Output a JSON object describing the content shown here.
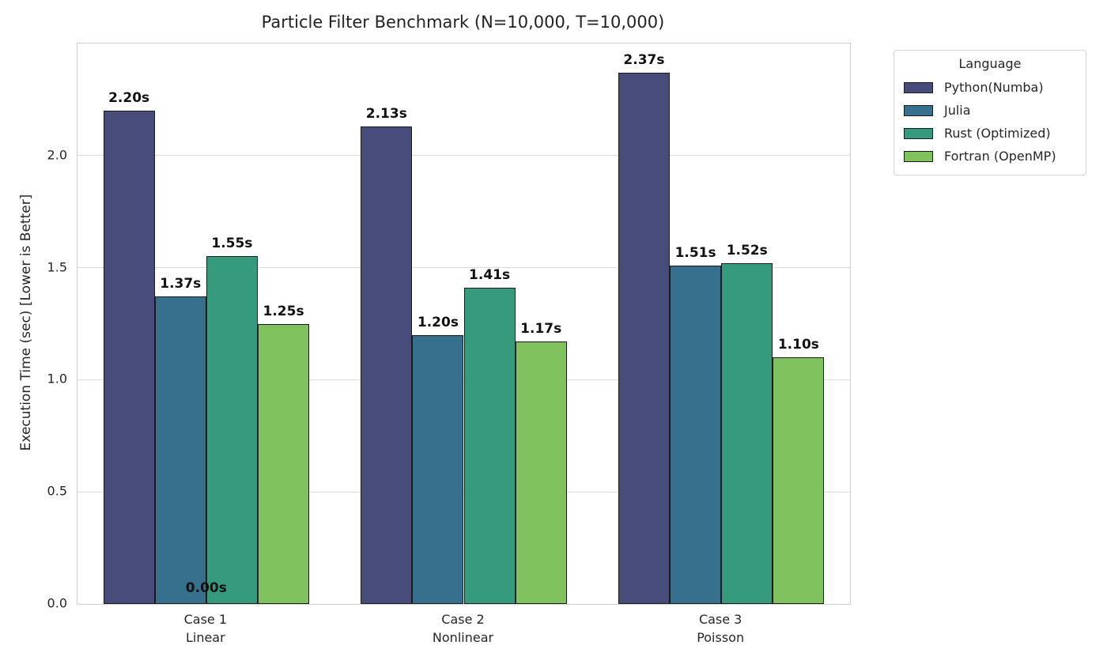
{
  "chart_data": {
    "type": "bar",
    "title": "Particle Filter Benchmark (N=10,000, T=10,000)",
    "xlabel": "",
    "ylabel": "Execution Time (sec) [Lower is Better]",
    "ylim": [
      0,
      2.5
    ],
    "yticks": [
      0.0,
      0.5,
      1.0,
      1.5,
      2.0
    ],
    "grid": "horizontal",
    "value_label_suffix": "s",
    "bar_edge_color": "#1a1a1a",
    "categories": [
      {
        "label": "Case 1",
        "sublabel": "Linear"
      },
      {
        "label": "Case 2",
        "sublabel": "Nonlinear"
      },
      {
        "label": "Case 3",
        "sublabel": "Poisson"
      }
    ],
    "series": [
      {
        "name": "Python(Numba)",
        "color": "#484c7a",
        "values": [
          2.2,
          2.13,
          2.37
        ]
      },
      {
        "name": "Julia",
        "color": "#36708c",
        "values": [
          1.37,
          1.2,
          1.51
        ]
      },
      {
        "name": "Rust (Optimized)",
        "color": "#359b7c",
        "values": [
          1.55,
          1.41,
          1.52
        ]
      },
      {
        "name": "Fortran (OpenMP)",
        "color": "#7fc25e",
        "values": [
          1.25,
          1.17,
          1.1
        ]
      }
    ],
    "annotations": [
      {
        "text": "0.00s",
        "category_index": 0,
        "value": 0
      }
    ],
    "legend": {
      "title": "Language",
      "position": "upper right outside"
    }
  }
}
